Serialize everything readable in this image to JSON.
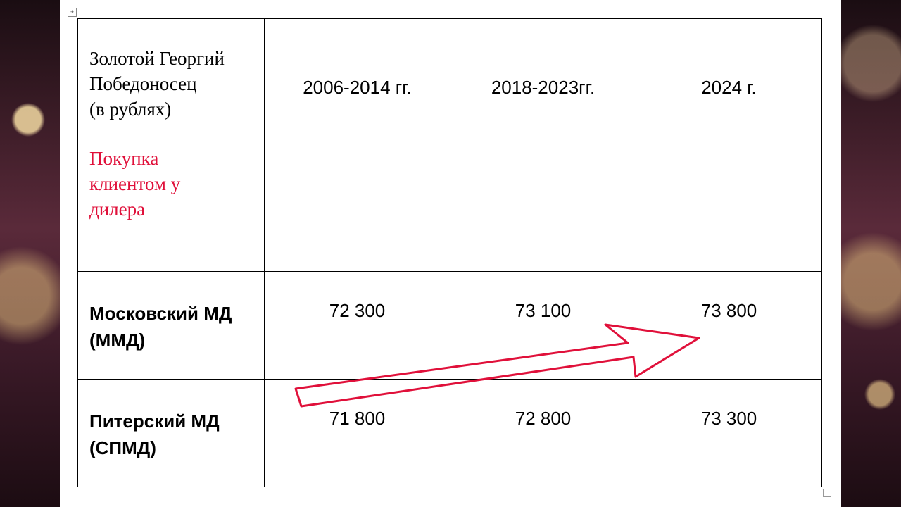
{
  "table": {
    "header": {
      "corner": {
        "lines": [
          "Золотой Георгий",
          "Победоносец",
          "(в рублях)"
        ],
        "note_lines": [
          "Покупка",
          "клиентом у",
          "дилера"
        ]
      },
      "periods": [
        "2006-2014 гг.",
        "2018-2023гг.",
        "2024 г."
      ]
    },
    "rows": [
      {
        "label_lines": [
          "Московский МД",
          "(ММД)"
        ],
        "values": [
          "72 300",
          "73 100",
          "73 800"
        ]
      },
      {
        "label_lines": [
          "Питерский МД",
          "(СПМД)"
        ],
        "values": [
          "71 800",
          "72 800",
          "73 300"
        ]
      }
    ]
  }
}
